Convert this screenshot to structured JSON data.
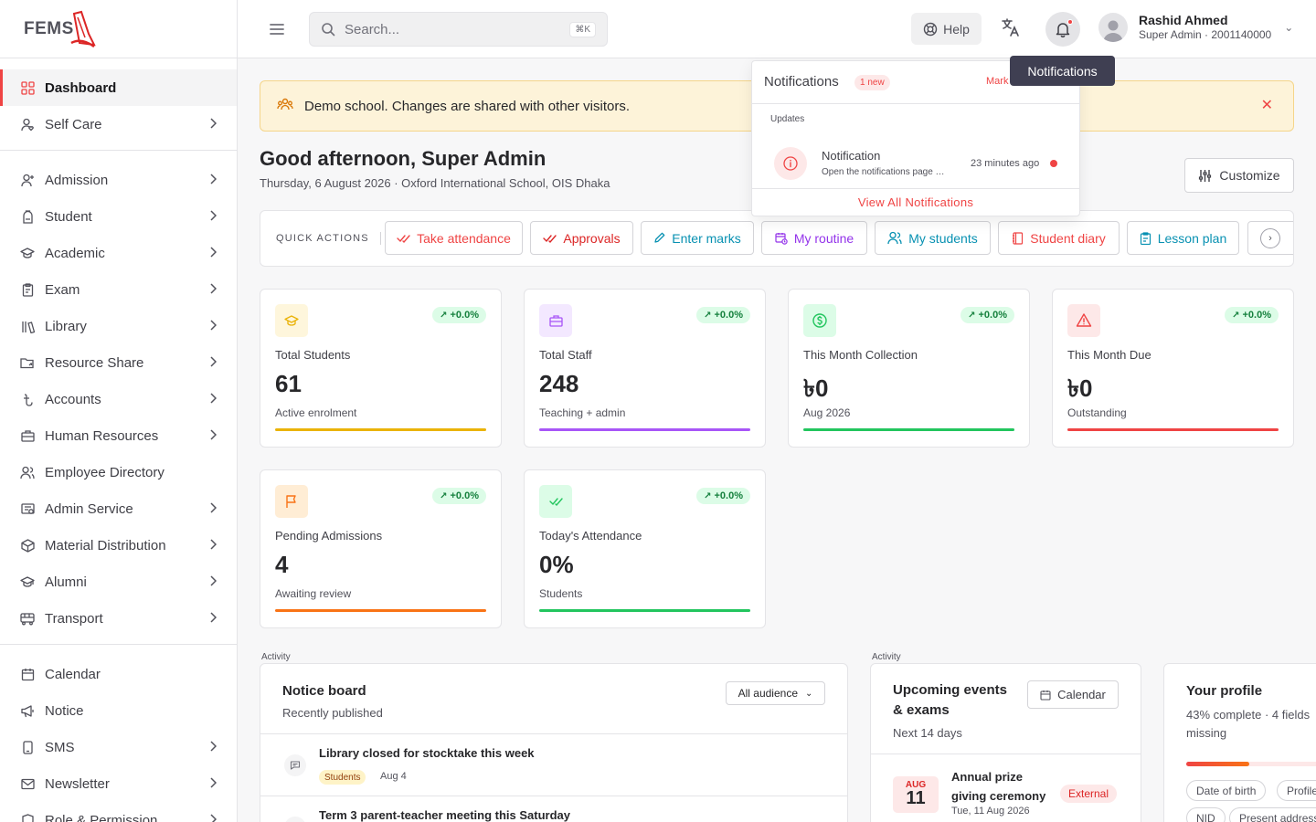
{
  "app": {
    "logo_text": "FEMS"
  },
  "sidebar": {
    "groups": [
      [
        {
          "label": "Dashboard",
          "icon": "grid-icon",
          "active": true,
          "chevron": false
        },
        {
          "label": "Self Care",
          "icon": "user-care-icon",
          "chevron": true
        }
      ],
      [
        {
          "label": "Admission",
          "icon": "user-plus-icon",
          "chevron": true
        },
        {
          "label": "Student",
          "icon": "backpack-icon",
          "chevron": true
        },
        {
          "label": "Academic",
          "icon": "graduation-cap-icon",
          "chevron": true
        },
        {
          "label": "Exam",
          "icon": "clipboard-icon",
          "chevron": true
        },
        {
          "label": "Library",
          "icon": "library-icon",
          "chevron": true
        },
        {
          "label": "Resource Share",
          "icon": "folder-share-icon",
          "chevron": true
        },
        {
          "label": "Accounts",
          "icon": "taka-icon",
          "chevron": true
        },
        {
          "label": "Human Resources",
          "icon": "briefcase-icon",
          "chevron": true
        },
        {
          "label": "Employee Directory",
          "icon": "users-icon",
          "chevron": false
        },
        {
          "label": "Admin Service",
          "icon": "admin-service-icon",
          "chevron": true
        },
        {
          "label": "Material Distribution",
          "icon": "package-icon",
          "chevron": true
        },
        {
          "label": "Alumni",
          "icon": "alumni-cap-icon",
          "chevron": true
        },
        {
          "label": "Transport",
          "icon": "bus-icon",
          "chevron": true
        }
      ],
      [
        {
          "label": "Calendar",
          "icon": "calendar-icon",
          "chevron": false
        },
        {
          "label": "Notice",
          "icon": "megaphone-icon",
          "chevron": false
        },
        {
          "label": "SMS",
          "icon": "sms-icon",
          "chevron": true
        },
        {
          "label": "Newsletter",
          "icon": "mail-icon",
          "chevron": true
        },
        {
          "label": "Role & Permission",
          "icon": "shield-icon",
          "chevron": true
        }
      ]
    ]
  },
  "topbar": {
    "search_placeholder": "Search...",
    "search_shortcut": "⌘K",
    "help_label": "Help",
    "user_name": "Rashid Ahmed",
    "user_role": "Super Admin · 2001140000"
  },
  "tooltip": {
    "text": "Notifications"
  },
  "notifications": {
    "title": "Notifications",
    "new_badge": "1 new",
    "mark_all": "Mark all read",
    "section": "Updates",
    "item_title": "Notification",
    "item_sub": "Open the notifications page …",
    "item_time": "23 minutes ago",
    "view_all": "View All Notifications"
  },
  "banner": {
    "text": "Demo school. Changes are shared with other visitors."
  },
  "header": {
    "greeting": "Good afternoon, Super Admin",
    "subline": "Thursday, 6 August 2026 · Oxford International School, OIS Dhaka",
    "customize_label": "Customize"
  },
  "quick_actions": {
    "title": "QUICK ACTIONS",
    "items": [
      {
        "label": "Take attendance",
        "color": "#ef4444",
        "icon": "double-check-icon"
      },
      {
        "label": "Approvals",
        "color": "#dc2626",
        "icon": "double-check-icon"
      },
      {
        "label": "Enter marks",
        "color": "#0891b2",
        "icon": "pencil-icon"
      },
      {
        "label": "My routine",
        "color": "#9333ea",
        "icon": "calendar-clock-icon"
      },
      {
        "label": "My students",
        "color": "#0891b2",
        "icon": "users-icon"
      },
      {
        "label": "Student diary",
        "color": "#ef4444",
        "icon": "notebook-icon"
      },
      {
        "label": "Lesson plan",
        "color": "#0891b2",
        "icon": "clipboard-list-icon"
      }
    ]
  },
  "stats": [
    {
      "label": "Total Students",
      "value": "61",
      "sub": "Active enrolment",
      "trend": "+0.0%",
      "color": "#eab308",
      "bg": "#fef6dc",
      "icon": "graduation-cap-icon"
    },
    {
      "label": "Total Staff",
      "value": "248",
      "sub": "Teaching + admin",
      "trend": "+0.0%",
      "color": "#a855f7",
      "bg": "#f3e8ff",
      "icon": "briefcase-icon"
    },
    {
      "label": "This Month Collection",
      "value": "৳0",
      "sub": "Aug 2026",
      "trend": "+0.0%",
      "color": "#22c55e",
      "bg": "#dcfce7",
      "icon": "dollar-circle-icon"
    },
    {
      "label": "This Month Due",
      "value": "৳0",
      "sub": "Outstanding",
      "trend": "+0.0%",
      "color": "#ef4444",
      "bg": "#fde8e8",
      "icon": "warning-triangle-icon"
    },
    {
      "label": "Pending Admissions",
      "value": "4",
      "sub": "Awaiting review",
      "trend": "+0.0%",
      "color": "#f97316",
      "bg": "#ffedd5",
      "icon": "flag-icon"
    },
    {
      "label": "Today's Attendance",
      "value": "0%",
      "sub": "Students",
      "trend": "+0.0%",
      "color": "#22c55e",
      "bg": "#dcfce7",
      "icon": "double-check-icon"
    }
  ],
  "notice_board": {
    "section": "Activity",
    "title": "Notice board",
    "subtitle": "Recently published",
    "audience": "All audience",
    "items": [
      {
        "title": "Library closed for stocktake this week",
        "tag": "Students",
        "date": "Aug 4"
      },
      {
        "title": "Term 3 parent-teacher meeting this Saturday",
        "tag": "",
        "date": ""
      }
    ]
  },
  "events": {
    "section": "Activity",
    "title": "Upcoming events & exams",
    "subtitle": "Next 14 days",
    "calendar_label": "Calendar",
    "items": [
      {
        "month": "AUG",
        "day": "11",
        "title": "Annual prize giving ceremony",
        "date": "Tue, 11 Aug 2026",
        "tag": "External"
      }
    ]
  },
  "profile": {
    "title": "Your profile",
    "subtitle": "43% complete · 4 fields missing",
    "progress": 0.43,
    "chips": [
      "Date of birth",
      "Profile photo",
      "NID",
      "Present address"
    ]
  }
}
